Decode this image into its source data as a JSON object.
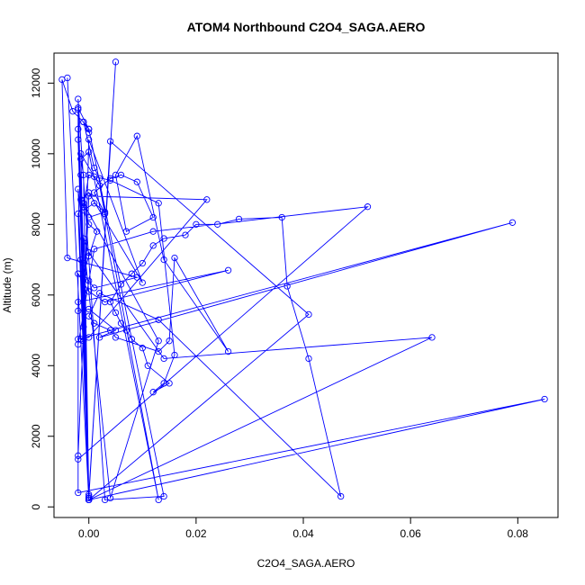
{
  "chart_data": {
    "type": "scatter",
    "title": "ATOM4 Northbound C2O4_SAGA.AERO",
    "xlabel": "C2O4_SAGA.AERO",
    "ylabel": "Altitude (m)",
    "xlim": [
      -0.0065,
      0.0875
    ],
    "ylim": [
      -300,
      12850
    ],
    "xticks": [
      0.0,
      0.02,
      0.04,
      0.06,
      0.08
    ],
    "xtick_labels": [
      "0.00",
      "0.02",
      "0.04",
      "0.06",
      "0.08"
    ],
    "yticks": [
      0,
      2000,
      4000,
      6000,
      8000,
      10000,
      12000
    ],
    "ytick_labels": [
      "0",
      "2000",
      "4000",
      "6000",
      "8000",
      "10000",
      "12000"
    ],
    "grid": false,
    "series": [
      {
        "color": "#0000ff",
        "connected": true,
        "x": [
          -0.004,
          0.0,
          -0.002,
          0.0,
          0.005,
          0.0,
          -0.002,
          0.003,
          0.014,
          0.0,
          -0.002,
          -0.002,
          -0.002,
          0.0,
          -0.0015,
          0.002,
          0.013,
          0.0,
          -0.0015,
          -0.001,
          0.0,
          0.004,
          0.041,
          0.0,
          -0.0015,
          0.0,
          0.0,
          -0.002,
          0.004,
          0.013,
          -0.001,
          -0.002,
          0.0,
          -0.001,
          0.0,
          0.014,
          0.064,
          0.0,
          -0.0015,
          -0.001,
          0.0,
          0.085,
          -0.002,
          -0.002,
          0.0,
          0.003,
          0.026,
          -0.002,
          -0.002,
          0.0,
          0.005,
          0.002,
          0.079,
          -0.002,
          -0.002,
          0.001,
          0.012,
          0.052,
          -0.002,
          -0.002,
          -0.001,
          0.0,
          0.022,
          0.0,
          -0.0015,
          -0.001,
          0.0,
          0.01,
          0.0,
          -0.0015,
          -0.001,
          0.0,
          0.001,
          0.004,
          0.013,
          0.016,
          0.014,
          0.012,
          0.015,
          0.011,
          0.01,
          0.008,
          0.007,
          0.006,
          0.005,
          0.004,
          0.006,
          0.008,
          0.01,
          0.012,
          0.014,
          0.018,
          0.02,
          0.024,
          0.028,
          0.036,
          0.037,
          0.041,
          0.047,
          0.013,
          0.002,
          0.0,
          0.001,
          0.004,
          0.005,
          0.013,
          0.015,
          0.016,
          0.026,
          0.014,
          0.009,
          0.005,
          0.007,
          0.012,
          0.009,
          0.006,
          0.004,
          0.001,
          0.003,
          0.002,
          0.001,
          -0.001,
          0.0,
          0.0,
          -0.001,
          -0.003,
          -0.005,
          -0.004,
          0.009,
          0.001,
          0.0,
          -0.001,
          0.0,
          0.0015,
          0.0,
          -0.001,
          0.001,
          0.003,
          0.0
        ],
        "y": [
          12150,
          200,
          11250,
          300,
          12600,
          350,
          11550,
          200,
          300,
          10700,
          11300,
          10700,
          10400,
          250,
          10000,
          9100,
          200,
          10050,
          9850,
          9400,
          250,
          10350,
          5450,
          200,
          9400,
          250,
          250,
          9000,
          250,
          4700,
          8600,
          8300,
          200,
          7600,
          7200,
          4200,
          4800,
          200,
          7000,
          6900,
          200,
          3050,
          400,
          6600,
          6100,
          5800,
          6700,
          5800,
          5550,
          5600,
          5000,
          4800,
          8050,
          4750,
          4600,
          7300,
          7800,
          8500,
          1350,
          1450,
          5100,
          8800,
          8700,
          4800,
          4750,
          4700,
          10400,
          6350,
          8900,
          8700,
          8500,
          9400,
          9350,
          9250,
          8600,
          4300,
          3500,
          3250,
          3500,
          4000,
          4500,
          4750,
          5000,
          5200,
          5500,
          5800,
          6300,
          6600,
          6900,
          7400,
          7600,
          7700,
          8000,
          8000,
          8150,
          8200,
          6250,
          4200,
          300,
          5300,
          6050,
          5400,
          5200,
          5000,
          4800,
          4400,
          4700,
          7050,
          4400,
          7000,
          10500,
          9400,
          7800,
          8200,
          9200,
          9400,
          9300,
          8900,
          8300,
          9300,
          9600,
          10900,
          10600,
          10700,
          10900,
          11200,
          12100,
          7050,
          6500,
          6200,
          6400,
          6600,
          7100,
          7800,
          8000,
          8400,
          8600,
          8350,
          8200
        ]
      }
    ]
  }
}
